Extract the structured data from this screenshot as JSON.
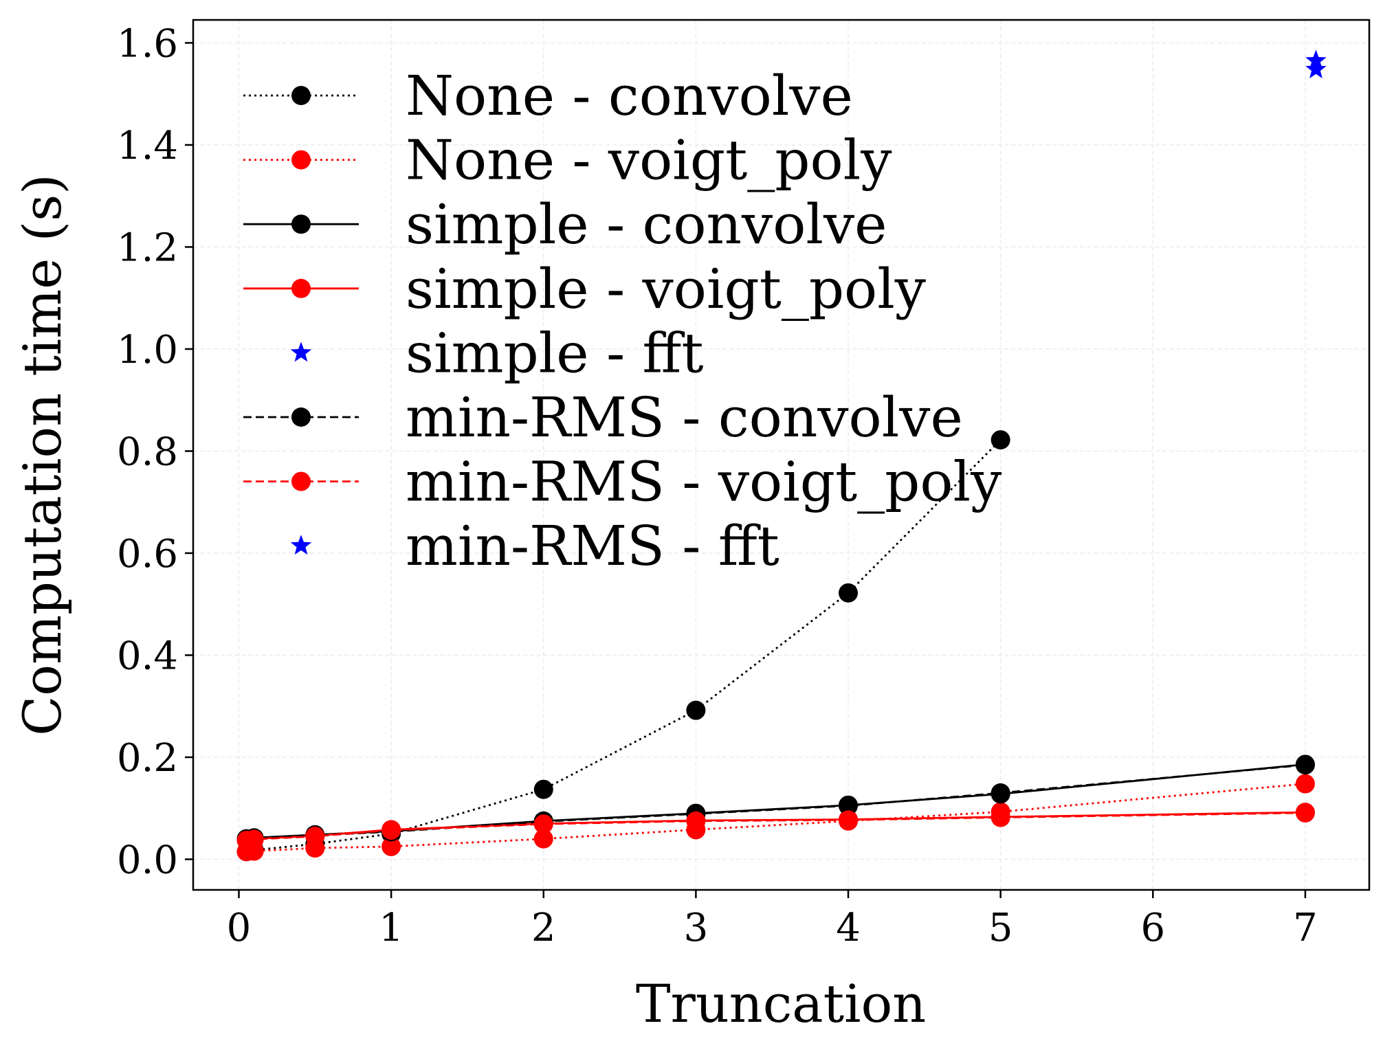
{
  "chart_data": {
    "type": "line",
    "title": "",
    "xlabel": "Truncation",
    "ylabel": "Computation time (s)",
    "xlim": [
      -0.3,
      7.42
    ],
    "ylim": [
      -0.06,
      1.645
    ],
    "xticks": [
      0,
      1,
      2,
      3,
      4,
      5,
      6,
      7
    ],
    "yticks": [
      0.0,
      0.2,
      0.4,
      0.6,
      0.8,
      1.0,
      1.2,
      1.4,
      1.6
    ],
    "grid": true,
    "legend_position": "upper-left",
    "series": [
      {
        "name": "None - convolve",
        "color": "#000000",
        "linestyle": "dotted",
        "marker": "circle",
        "x": [
          0.05,
          0.1,
          0.5,
          1,
          2,
          3,
          4,
          5
        ],
        "y": [
          0.015,
          0.018,
          0.03,
          0.05,
          0.137,
          0.292,
          0.522,
          0.822
        ]
      },
      {
        "name": "None - voigt_poly",
        "color": "#ff0000",
        "linestyle": "dotted",
        "marker": "circle",
        "x": [
          0.05,
          0.1,
          0.5,
          1,
          2,
          3,
          4,
          5,
          7
        ],
        "y": [
          0.015,
          0.016,
          0.022,
          0.025,
          0.04,
          0.058,
          0.075,
          0.093,
          0.148
        ]
      },
      {
        "name": "simple - convolve",
        "color": "#000000",
        "linestyle": "solid",
        "marker": "circle",
        "x": [
          0.05,
          0.1,
          0.5,
          1,
          2,
          3,
          4,
          5,
          7
        ],
        "y": [
          0.04,
          0.042,
          0.048,
          0.055,
          0.075,
          0.09,
          0.106,
          0.128,
          0.186
        ]
      },
      {
        "name": "simple - voigt_poly",
        "color": "#ff0000",
        "linestyle": "solid",
        "marker": "circle",
        "x": [
          0.05,
          0.1,
          0.5,
          1,
          2,
          3,
          4,
          5,
          7
        ],
        "y": [
          0.038,
          0.04,
          0.046,
          0.058,
          0.07,
          0.076,
          0.078,
          0.083,
          0.092
        ]
      },
      {
        "name": "simple - fft",
        "color": "#0000ff",
        "linestyle": "none",
        "marker": "star",
        "x": [
          7.07
        ],
        "y": [
          1.565
        ]
      },
      {
        "name": "min-RMS - convolve",
        "color": "#000000",
        "linestyle": "dashed",
        "marker": "circle",
        "x": [
          0.05,
          0.1,
          0.5,
          1,
          2,
          3,
          4,
          5,
          7
        ],
        "y": [
          0.04,
          0.041,
          0.047,
          0.054,
          0.074,
          0.089,
          0.105,
          0.13,
          0.185
        ]
      },
      {
        "name": "min-RMS - voigt_poly",
        "color": "#ff0000",
        "linestyle": "dashed",
        "marker": "circle",
        "x": [
          0.05,
          0.1,
          0.5,
          1,
          2,
          3,
          4,
          5,
          7
        ],
        "y": [
          0.037,
          0.039,
          0.045,
          0.057,
          0.069,
          0.075,
          0.077,
          0.082,
          0.091
        ]
      },
      {
        "name": "min-RMS - fft",
        "color": "#0000ff",
        "linestyle": "none",
        "marker": "star",
        "x": [
          7.07
        ],
        "y": [
          1.548
        ]
      }
    ]
  }
}
